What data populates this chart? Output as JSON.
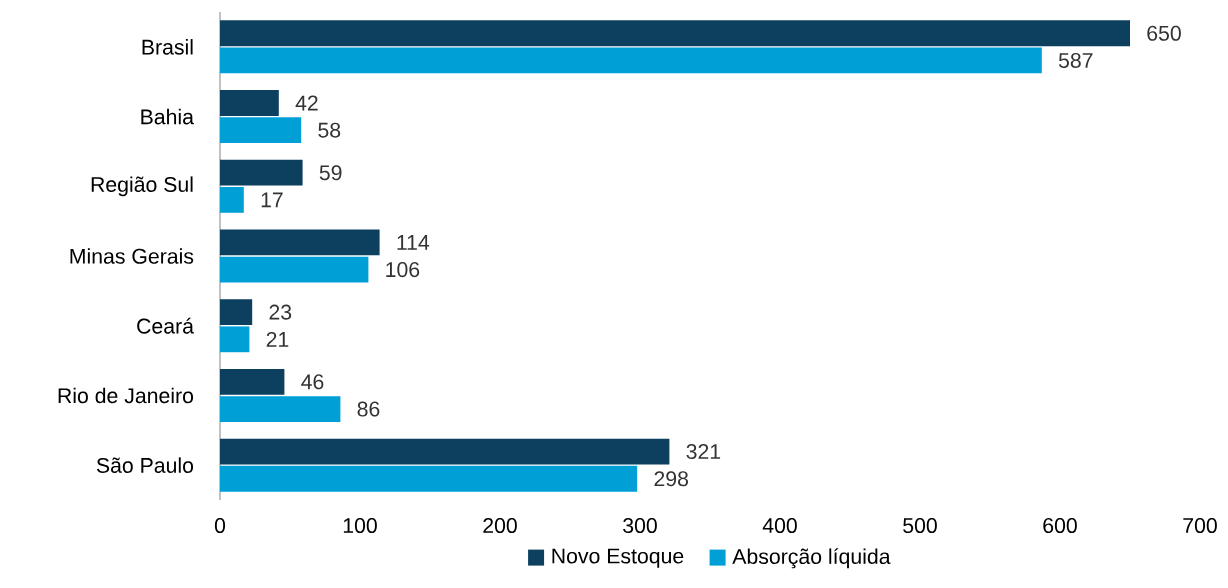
{
  "chart_data": {
    "type": "bar",
    "orientation": "horizontal",
    "categories": [
      "Brasil",
      "Bahia",
      "Região Sul",
      "Minas Gerais",
      "Ceará",
      "Rio de Janeiro",
      "São Paulo"
    ],
    "series": [
      {
        "name": "Novo Estoque",
        "color": "#0d3f5f",
        "values": [
          650,
          42,
          59,
          114,
          23,
          46,
          321
        ]
      },
      {
        "name": "Absorção líquida",
        "color": "#009fd6",
        "values": [
          587,
          58,
          17,
          106,
          21,
          86,
          298
        ]
      }
    ],
    "xlim": [
      0,
      700
    ],
    "xticks": [
      0,
      100,
      200,
      300,
      400,
      500,
      600,
      700
    ],
    "data_labels": true,
    "legend": "bottom",
    "grid": false
  }
}
